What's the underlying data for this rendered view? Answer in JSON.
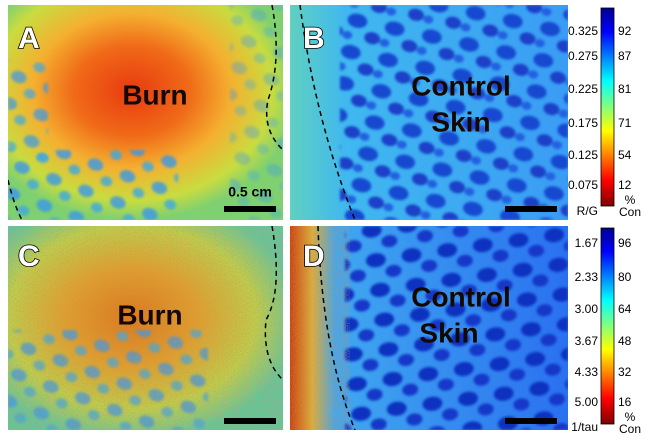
{
  "panels": [
    {
      "label": "A",
      "text": [
        "Burn"
      ],
      "scale_bar": "0.5 cm"
    },
    {
      "label": "B",
      "text": [
        "Control",
        "Skin"
      ]
    },
    {
      "label": "C",
      "text": [
        "Burn"
      ]
    },
    {
      "label": "D",
      "text": [
        "Control",
        "Skin"
      ]
    }
  ],
  "colorbars": [
    {
      "left_ticks": [
        "0.325",
        "0.275",
        "0.225",
        "0.175",
        "0.125",
        "0.075"
      ],
      "left_unit": "R/G",
      "right_ticks": [
        "92",
        "87",
        "81",
        "71",
        "54",
        "12"
      ],
      "right_unit": [
        "%",
        "Con"
      ]
    },
    {
      "left_ticks": [
        "1.67",
        "2.33",
        "3.00",
        "3.67",
        "4.33",
        "5.00"
      ],
      "left_unit": "1/tau",
      "right_ticks": [
        "96",
        "80",
        "64",
        "48",
        "32",
        "16"
      ],
      "right_unit": [
        "%",
        "Con"
      ]
    }
  ]
}
